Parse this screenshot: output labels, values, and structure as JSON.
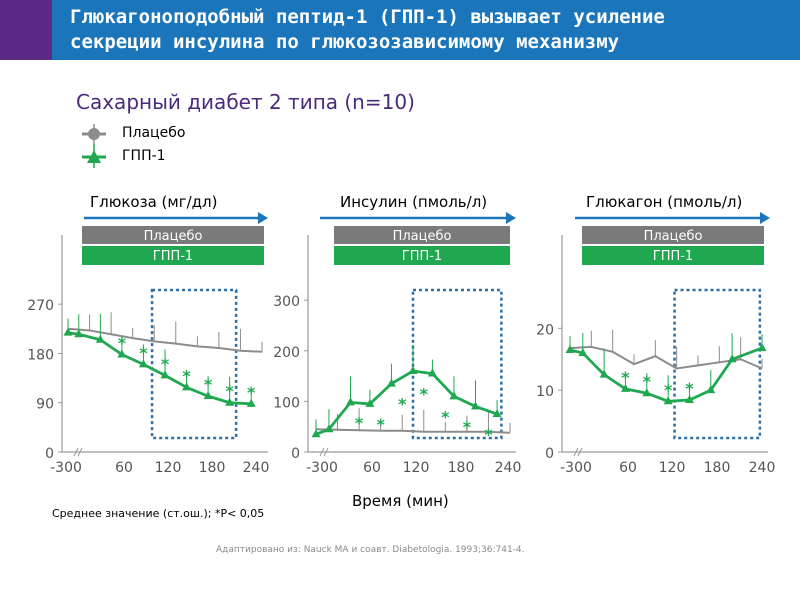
{
  "header": {
    "title_line1": "Глюкагоноподобный пептид-1 (ГПП-1) вызывает усиление",
    "title_line2": "секреции инсулина по глюкозозависимому механизму"
  },
  "subtitle": "Сахарный диабет 2 типа (n=10)",
  "legend": {
    "placebo": "Плацебо",
    "glp1": "ГПП-1"
  },
  "xlabel": "Время (мин)",
  "footnote": "Среднее значение (ст.ош.); *P< 0,05",
  "source": "Адаптировано из: Nauck MA и соавт. Diabetologia. 1993;36:741-4.",
  "colors": {
    "header": "#1b75bb",
    "header_accent": "#5b2a86",
    "placebo": "#8c8c8c",
    "glp1": "#1fa84f",
    "placebo_bar": "#7a7a7a",
    "arrow": "#1b75bb",
    "highlight": "#2a6fa8"
  },
  "chart_data": [
    {
      "type": "line",
      "title": "Глюкоза (мг/дл)",
      "bar_labels": [
        "Плацебо",
        "ГПП-1"
      ],
      "x_ticks": [
        "-300",
        "60",
        "120",
        "180",
        "240"
      ],
      "y_ticks": [
        "0",
        "90",
        "180",
        "270"
      ],
      "y_tick_values": [
        0,
        90,
        180,
        270
      ],
      "ylim": [
        0,
        305
      ],
      "highlight_x": [
        3.9,
        7.8
      ],
      "series": [
        {
          "name": "Плацебо",
          "x": [
            0,
            1,
            2,
            3,
            4,
            5,
            6,
            7,
            8,
            9
          ],
          "values": [
            225,
            222,
            215,
            208,
            202,
            198,
            193,
            190,
            185,
            183
          ]
        },
        {
          "name": "ГПП-1",
          "x": [
            0,
            0.5,
            1.5,
            2.5,
            3.5,
            4.5,
            5.5,
            6.5,
            7.5,
            8.5
          ],
          "values": [
            218,
            215,
            205,
            178,
            160,
            140,
            118,
            102,
            90,
            88
          ]
        }
      ],
      "significance_x": [
        2.5,
        3.5,
        4.5,
        5.5,
        6.5,
        7.5,
        8.5
      ]
    },
    {
      "type": "line",
      "title": "Инсулин (пмоль/л)",
      "bar_labels": [
        "Плацебо",
        "ГПП-1"
      ],
      "x_ticks": [
        "-300",
        "60",
        "120",
        "180",
        "240"
      ],
      "y_ticks": [
        "0",
        "100",
        "200",
        "300"
      ],
      "y_tick_values": [
        0,
        100,
        200,
        300
      ],
      "ylim": [
        0,
        330
      ],
      "highlight_x": [
        4.5,
        8.6
      ],
      "series": [
        {
          "name": "Плацебо",
          "x": [
            0,
            1,
            2,
            3,
            4,
            5,
            6,
            7,
            8,
            9
          ],
          "values": [
            45,
            44,
            43,
            42,
            42,
            40,
            40,
            40,
            40,
            38
          ]
        },
        {
          "name": "ГПП-1",
          "x": [
            0,
            0.6,
            1.6,
            2.5,
            3.5,
            4.5,
            5.4,
            6.4,
            7.4,
            8.4
          ],
          "values": [
            35,
            45,
            98,
            95,
            135,
            160,
            155,
            110,
            90,
            75
          ]
        }
      ],
      "significance_x": [
        2.0,
        3.0,
        4.0,
        5.0,
        6.0,
        7.0,
        8.0
      ]
    },
    {
      "type": "line",
      "title": "Глюкагон (пмоль/л)",
      "bar_labels": [
        "Плацебо",
        "ГПП-1"
      ],
      "x_ticks": [
        "-300",
        "60",
        "120",
        "180",
        "240"
      ],
      "y_ticks": [
        "0",
        "10",
        "20"
      ],
      "y_tick_values": [
        0,
        10,
        20
      ],
      "ylim": [
        0,
        27
      ],
      "highlight_x": [
        4.9,
        8.9
      ],
      "series": [
        {
          "name": "Плацебо",
          "x": [
            0,
            1,
            2,
            3,
            4,
            5,
            6,
            7,
            8,
            9
          ],
          "values": [
            16.8,
            17.0,
            16.2,
            14.2,
            15.5,
            13.5,
            14.0,
            14.5,
            15.0,
            13.5
          ]
        },
        {
          "name": "ГПП-1",
          "x": [
            0,
            0.6,
            1.6,
            2.6,
            3.6,
            4.6,
            5.6,
            6.6,
            7.6,
            9.0
          ],
          "values": [
            16.5,
            16.0,
            12.5,
            10.2,
            9.5,
            8.2,
            8.4,
            10.0,
            15.0,
            16.8
          ]
        }
      ],
      "significance_x": [
        2.6,
        3.6,
        4.6,
        5.6
      ]
    }
  ]
}
